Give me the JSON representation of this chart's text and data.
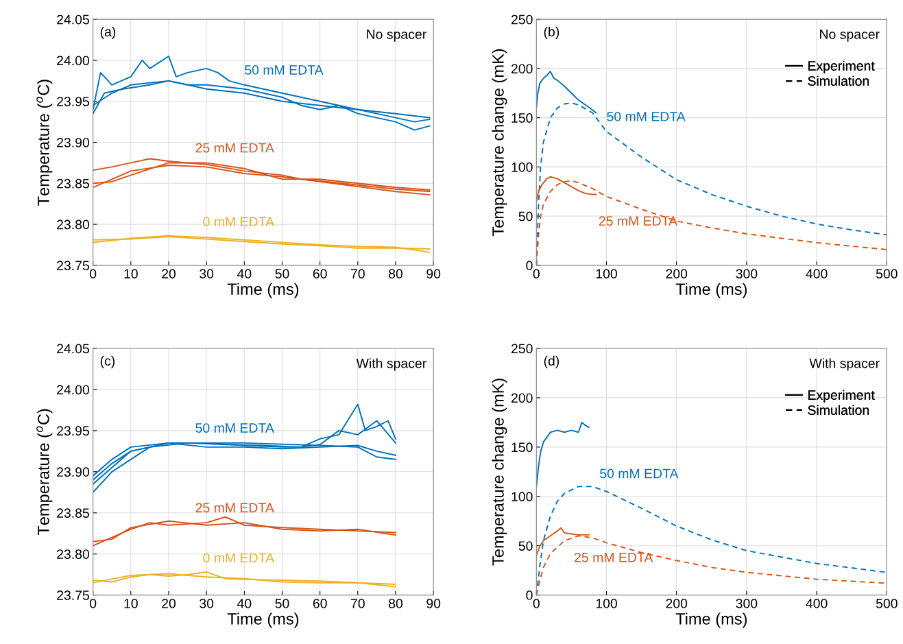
{
  "chart_data": [
    {
      "type": "line",
      "title": "(a)",
      "subtitle": "No spacer",
      "xlabel": "Time (ms)",
      "ylabel": "Temperature ($^{o}$C)",
      "xlim": [
        0,
        90
      ],
      "xticks": [
        0,
        10,
        20,
        30,
        40,
        50,
        60,
        70,
        80,
        90
      ],
      "ylim": [
        23.75,
        24.05
      ],
      "yticks": [
        {
          "value": 23.75,
          "label": "23.75"
        },
        {
          "value": 23.8,
          "label": "23.80"
        },
        {
          "value": 23.85,
          "label": "23.85"
        },
        {
          "value": 23.9,
          "label": "23.90"
        },
        {
          "value": 23.95,
          "label": "23.95"
        },
        {
          "value": 24.0,
          "label": "24.00"
        },
        {
          "value": 24.05,
          "label": "24.05"
        }
      ],
      "grid": true,
      "annotations": [
        {
          "text": "50 mM EDTA",
          "x": 40,
          "y": 23.97
        },
        {
          "text": "25 mM EDTA",
          "x": 27,
          "y": 23.875
        },
        {
          "text": "0 mM EDTA",
          "x": 29,
          "y": 23.785
        }
      ],
      "series": [
        {
          "color": "#0072bd",
          "x": [
            0,
            2,
            5,
            10,
            13,
            15,
            20,
            22,
            25,
            30,
            33,
            36,
            40,
            45,
            50,
            55,
            60,
            65,
            70,
            75,
            80,
            85,
            89
          ],
          "values": [
            23.94,
            23.985,
            23.97,
            23.98,
            24.0,
            23.99,
            24.005,
            23.98,
            23.985,
            23.99,
            23.985,
            23.975,
            23.97,
            23.965,
            23.96,
            23.955,
            23.95,
            23.945,
            23.94,
            23.935,
            23.93,
            23.925,
            23.928
          ]
        },
        {
          "color": "#0072bd",
          "x": [
            0,
            3,
            8,
            15,
            20,
            25,
            30,
            40,
            50,
            55,
            60,
            65,
            70,
            80,
            85,
            89
          ],
          "values": [
            23.935,
            23.96,
            23.965,
            23.97,
            23.975,
            23.97,
            23.97,
            23.965,
            23.955,
            23.945,
            23.94,
            23.945,
            23.935,
            23.925,
            23.915,
            23.92
          ]
        },
        {
          "color": "#0072bd",
          "x": [
            0,
            5,
            10,
            20,
            30,
            40,
            50,
            60,
            70,
            80,
            89
          ],
          "values": [
            23.945,
            23.96,
            23.97,
            23.975,
            23.965,
            23.96,
            23.95,
            23.945,
            23.94,
            23.935,
            23.93
          ]
        },
        {
          "color": "#d95319",
          "x": [
            0,
            5,
            10,
            15,
            20,
            25,
            30,
            40,
            50,
            55,
            60,
            70,
            80,
            89
          ],
          "values": [
            23.866,
            23.87,
            23.875,
            23.88,
            23.877,
            23.875,
            23.873,
            23.865,
            23.86,
            23.855,
            23.853,
            23.848,
            23.843,
            23.84
          ]
        },
        {
          "color": "#d95319",
          "x": [
            0,
            5,
            10,
            20,
            30,
            40,
            50,
            60,
            70,
            80,
            89
          ],
          "values": [
            23.845,
            23.855,
            23.865,
            23.872,
            23.87,
            23.862,
            23.858,
            23.852,
            23.846,
            23.84,
            23.836
          ]
        },
        {
          "color": "#d95319",
          "x": [
            0,
            5,
            10,
            20,
            30,
            40,
            50,
            60,
            70,
            80,
            89
          ],
          "values": [
            23.85,
            23.852,
            23.86,
            23.875,
            23.875,
            23.868,
            23.855,
            23.855,
            23.85,
            23.845,
            23.842
          ]
        },
        {
          "color": "#edb120",
          "x": [
            0,
            10,
            20,
            30,
            40,
            50,
            60,
            70,
            80,
            89
          ],
          "values": [
            23.778,
            23.783,
            23.786,
            23.784,
            23.781,
            23.778,
            23.775,
            23.773,
            23.772,
            23.766
          ]
        },
        {
          "color": "#edb120",
          "x": [
            0,
            10,
            20,
            30,
            40,
            50,
            60,
            70,
            80,
            89
          ],
          "values": [
            23.781,
            23.782,
            23.785,
            23.782,
            23.779,
            23.776,
            23.774,
            23.771,
            23.771,
            23.77
          ]
        }
      ]
    },
    {
      "type": "line",
      "title": "(b)",
      "subtitle": "No spacer",
      "xlabel": "Time (ms)",
      "ylabel": "Temperature change (mK)",
      "xlim": [
        0,
        500
      ],
      "xticks": [
        0,
        100,
        200,
        300,
        400,
        500
      ],
      "ylim": [
        0,
        250
      ],
      "yticks": [
        0,
        50,
        100,
        150,
        200,
        250
      ],
      "grid": true,
      "annotations": [
        {
          "text": "50 mM EDTA",
          "x": 100,
          "y": 136
        },
        {
          "text": "25 mM EDTA",
          "x": 145,
          "y": 58
        },
        "Experiment",
        "Simulation"
      ],
      "series": [
        {
          "color": "#0072bd",
          "line_style": "solid",
          "x": [
            0,
            2,
            5,
            10,
            15,
            20,
            25,
            30,
            40,
            50,
            60,
            70,
            80,
            85
          ],
          "values": [
            160,
            175,
            185,
            190,
            193,
            197,
            190,
            188,
            182,
            175,
            168,
            163,
            158,
            155
          ]
        },
        {
          "color": "#0072bd",
          "line_style": "dashed",
          "x": [
            0,
            3,
            6,
            10,
            20,
            30,
            40,
            50,
            60,
            80,
            100,
            150,
            200,
            250,
            300,
            350,
            400,
            450,
            500
          ],
          "values": [
            0,
            60,
            100,
            125,
            150,
            160,
            164,
            165,
            163,
            155,
            136,
            110,
            87,
            72,
            60,
            50,
            42,
            36,
            31
          ]
        },
        {
          "color": "#d95319",
          "line_style": "solid",
          "x": [
            0,
            3,
            8,
            15,
            20,
            30,
            40,
            50,
            60,
            70,
            80,
            85
          ],
          "values": [
            65,
            75,
            82,
            88,
            90,
            88,
            84,
            80,
            76,
            73,
            72,
            72
          ]
        },
        {
          "color": "#d95319",
          "line_style": "dashed",
          "x": [
            0,
            3,
            6,
            10,
            20,
            30,
            40,
            50,
            60,
            80,
            100,
            150,
            200,
            250,
            300,
            400,
            500
          ],
          "values": [
            0,
            30,
            50,
            62,
            75,
            82,
            85,
            86,
            84,
            78,
            70,
            57,
            45,
            38,
            32,
            23,
            16
          ]
        }
      ]
    },
    {
      "type": "line",
      "title": "(c)",
      "subtitle": "With spacer",
      "xlabel": "Time (ms)",
      "ylabel": "Temperature ($^{o}$C)",
      "xlim": [
        0,
        90
      ],
      "xticks": [
        0,
        10,
        20,
        30,
        40,
        50,
        60,
        70,
        80,
        90
      ],
      "ylim": [
        23.75,
        24.05
      ],
      "yticks": [
        {
          "value": 23.75,
          "label": "23.75"
        },
        {
          "value": 23.8,
          "label": "23.80"
        },
        {
          "value": 23.85,
          "label": "23.85"
        },
        {
          "value": 23.9,
          "label": "23.90"
        },
        {
          "value": 23.95,
          "label": "23.95"
        },
        {
          "value": 24.0,
          "label": "24.00"
        },
        {
          "value": 24.05,
          "label": "24.05"
        }
      ],
      "grid": true,
      "annotations": [
        {
          "text": "50 mM EDTA",
          "x": 27,
          "y": 23.935
        },
        {
          "text": "25 mM EDTA",
          "x": 27,
          "y": 23.838
        },
        {
          "text": "0 mM EDTA",
          "x": 29,
          "y": 23.777
        }
      ],
      "series": [
        {
          "color": "#0072bd",
          "x": [
            0,
            5,
            10,
            15,
            20,
            30,
            40,
            50,
            55,
            60,
            65,
            70,
            72,
            75,
            78,
            80
          ],
          "values": [
            23.89,
            23.91,
            23.925,
            23.93,
            23.935,
            23.935,
            23.932,
            23.93,
            23.93,
            23.94,
            23.945,
            23.982,
            23.95,
            23.955,
            23.962,
            23.94
          ]
        },
        {
          "color": "#0072bd",
          "x": [
            0,
            5,
            10,
            15,
            25,
            35,
            45,
            55,
            60,
            65,
            70,
            75,
            80
          ],
          "values": [
            23.875,
            23.9,
            23.915,
            23.93,
            23.935,
            23.933,
            23.932,
            23.93,
            23.933,
            23.95,
            23.945,
            23.962,
            23.935
          ]
        },
        {
          "color": "#0072bd",
          "x": [
            0,
            5,
            10,
            20,
            30,
            40,
            50,
            60,
            70,
            75,
            80
          ],
          "values": [
            23.895,
            23.915,
            23.93,
            23.935,
            23.93,
            23.93,
            23.928,
            23.93,
            23.932,
            23.925,
            23.92
          ]
        },
        {
          "color": "#0072bd",
          "x": [
            0,
            10,
            20,
            40,
            60,
            70,
            75,
            80
          ],
          "values": [
            23.885,
            23.925,
            23.935,
            23.935,
            23.932,
            23.93,
            23.918,
            23.915
          ]
        },
        {
          "color": "#d95319",
          "x": [
            0,
            5,
            10,
            15,
            20,
            30,
            35,
            40,
            50,
            60,
            70,
            80
          ],
          "values": [
            23.81,
            23.82,
            23.83,
            23.838,
            23.835,
            23.838,
            23.845,
            23.835,
            23.832,
            23.83,
            23.828,
            23.826
          ]
        },
        {
          "color": "#d95319",
          "x": [
            0,
            5,
            10,
            20,
            30,
            40,
            50,
            60,
            70,
            80
          ],
          "values": [
            23.815,
            23.818,
            23.832,
            23.84,
            23.835,
            23.838,
            23.83,
            23.828,
            23.83,
            23.823
          ]
        },
        {
          "color": "#edb120",
          "x": [
            0,
            5,
            10,
            15,
            20,
            25,
            30,
            35,
            40,
            50,
            60,
            70,
            80
          ],
          "values": [
            23.768,
            23.766,
            23.772,
            23.775,
            23.773,
            23.775,
            23.778,
            23.77,
            23.769,
            23.768,
            23.767,
            23.765,
            23.76
          ]
        },
        {
          "color": "#edb120",
          "x": [
            0,
            10,
            20,
            30,
            40,
            50,
            60,
            70,
            80
          ],
          "values": [
            23.765,
            23.774,
            23.776,
            23.772,
            23.77,
            23.766,
            23.765,
            23.765,
            23.763
          ]
        }
      ]
    },
    {
      "type": "line",
      "title": "(d)",
      "subtitle": "With spacer",
      "xlabel": "Time (ms)",
      "ylabel": "Temperature change (mK)",
      "xlim": [
        0,
        500
      ],
      "xticks": [
        0,
        100,
        200,
        300,
        400,
        500
      ],
      "ylim": [
        0,
        250
      ],
      "yticks": [
        0,
        50,
        100,
        150,
        200,
        250
      ],
      "grid": true,
      "annotations": [
        {
          "text": "50 mM EDTA",
          "x": 90,
          "y": 108
        },
        {
          "text": "25 mM EDTA",
          "x": 110,
          "y": 51
        },
        "Experiment",
        "Simulation"
      ],
      "series": [
        {
          "color": "#0072bd",
          "line_style": "solid",
          "x": [
            0,
            3,
            6,
            10,
            15,
            20,
            30,
            40,
            50,
            60,
            65,
            70,
            75
          ],
          "values": [
            110,
            130,
            145,
            155,
            160,
            165,
            167,
            165,
            167,
            165,
            175,
            172,
            170
          ]
        },
        {
          "color": "#0072bd",
          "line_style": "dashed",
          "x": [
            0,
            5,
            10,
            20,
            30,
            40,
            60,
            80,
            100,
            150,
            200,
            250,
            300,
            400,
            500
          ],
          "values": [
            0,
            30,
            55,
            80,
            95,
            103,
            110,
            110,
            105,
            88,
            70,
            56,
            45,
            32,
            23
          ]
        },
        {
          "color": "#d95319",
          "line_style": "solid",
          "x": [
            0,
            5,
            10,
            20,
            30,
            35,
            40,
            50,
            60,
            75
          ],
          "values": [
            40,
            50,
            55,
            60,
            65,
            68,
            63,
            62,
            61,
            61
          ]
        },
        {
          "color": "#d95319",
          "line_style": "dashed",
          "x": [
            0,
            5,
            10,
            20,
            40,
            60,
            80,
            100,
            150,
            200,
            250,
            300,
            400,
            500
          ],
          "values": [
            0,
            15,
            28,
            42,
            55,
            60,
            58,
            53,
            43,
            35,
            28,
            23,
            16,
            12
          ]
        }
      ]
    }
  ]
}
